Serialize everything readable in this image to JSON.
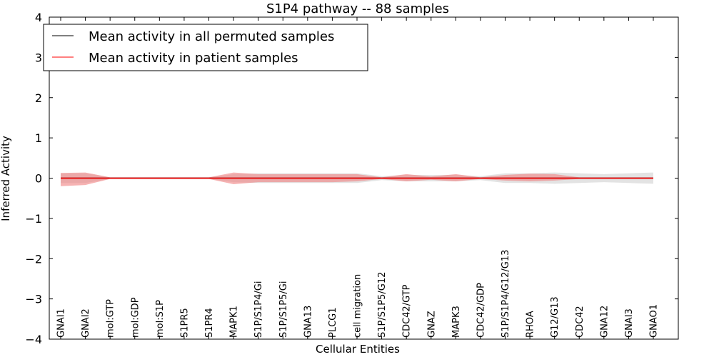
{
  "chart_data": {
    "type": "line",
    "title": "S1P4 pathway -- 88 samples",
    "xlabel": "Cellular Entities",
    "ylabel": "Inferred Activity",
    "ylim": [
      -4,
      4
    ],
    "yticks": [
      4,
      3,
      2,
      1,
      0,
      -1,
      -2,
      -3,
      -4
    ],
    "ytick_labels": [
      "4",
      "3",
      "2",
      "1",
      "0",
      "−1",
      "−2",
      "−3",
      "−4"
    ],
    "categories": [
      "GNAI1",
      "GNAI2",
      "mol:GTP",
      "mol:GDP",
      "mol:S1P",
      "S1PR5",
      "S1PR4",
      "MAPK1",
      "S1P/S1P4/Gi",
      "S1P/S1P5/Gi",
      "GNA13",
      "PLCG1",
      "cell migration",
      "S1P/S1P5/G12",
      "CDC42/GTP",
      "GNAZ",
      "MAPK3",
      "CDC42/GDP",
      "S1P/S1P4/G12/G13",
      "RHOA",
      "G12/G13",
      "CDC42",
      "GNA12",
      "GNAI3",
      "GNAO1"
    ],
    "legend": {
      "position": "top-left",
      "entries": [
        "Mean activity in all permuted samples",
        "Mean activity in patient samples"
      ]
    },
    "series": [
      {
        "name": "Mean activity in all permuted samples",
        "color": "#000000",
        "band_color": "#c8c8c8",
        "values": [
          0.0,
          0.0,
          0.0,
          0.0,
          0.0,
          0.0,
          0.0,
          0.0,
          0.0,
          0.0,
          0.0,
          0.0,
          0.0,
          0.0,
          0.0,
          0.0,
          0.0,
          0.0,
          0.0,
          0.0,
          0.0,
          0.0,
          0.0,
          0.0,
          0.0
        ],
        "lower": [
          -0.12,
          -0.12,
          -0.02,
          -0.02,
          -0.02,
          -0.02,
          -0.02,
          -0.1,
          -0.12,
          -0.12,
          -0.12,
          -0.12,
          -0.12,
          -0.05,
          -0.08,
          -0.08,
          -0.08,
          -0.05,
          -0.12,
          -0.12,
          -0.14,
          -0.12,
          -0.1,
          -0.12,
          -0.14
        ],
        "upper": [
          0.12,
          0.12,
          0.02,
          0.02,
          0.02,
          0.02,
          0.02,
          0.1,
          0.12,
          0.12,
          0.12,
          0.12,
          0.12,
          0.05,
          0.08,
          0.08,
          0.08,
          0.05,
          0.12,
          0.12,
          0.14,
          0.12,
          0.1,
          0.12,
          0.14
        ]
      },
      {
        "name": "Mean activity in patient samples",
        "color": "#ff0000",
        "band_color": "#f08080",
        "values": [
          0.0,
          0.0,
          0.0,
          0.0,
          0.0,
          0.0,
          0.0,
          0.0,
          0.0,
          0.0,
          0.0,
          0.0,
          0.0,
          0.0,
          0.0,
          0.0,
          0.0,
          0.0,
          0.0,
          0.0,
          0.0,
          0.0,
          0.0,
          0.0,
          0.0
        ],
        "lower": [
          -0.2,
          -0.17,
          -0.02,
          -0.02,
          -0.02,
          -0.02,
          -0.02,
          -0.15,
          -0.1,
          -0.1,
          -0.1,
          -0.1,
          -0.08,
          -0.02,
          -0.08,
          -0.04,
          -0.08,
          -0.02,
          -0.06,
          -0.08,
          -0.06,
          -0.02,
          -0.02,
          -0.02,
          -0.02
        ],
        "upper": [
          0.13,
          0.14,
          0.02,
          0.02,
          0.02,
          0.02,
          0.02,
          0.14,
          0.1,
          0.1,
          0.1,
          0.1,
          0.1,
          0.02,
          0.1,
          0.04,
          0.1,
          0.02,
          0.08,
          0.11,
          0.1,
          0.02,
          0.02,
          0.02,
          0.02
        ]
      }
    ]
  }
}
